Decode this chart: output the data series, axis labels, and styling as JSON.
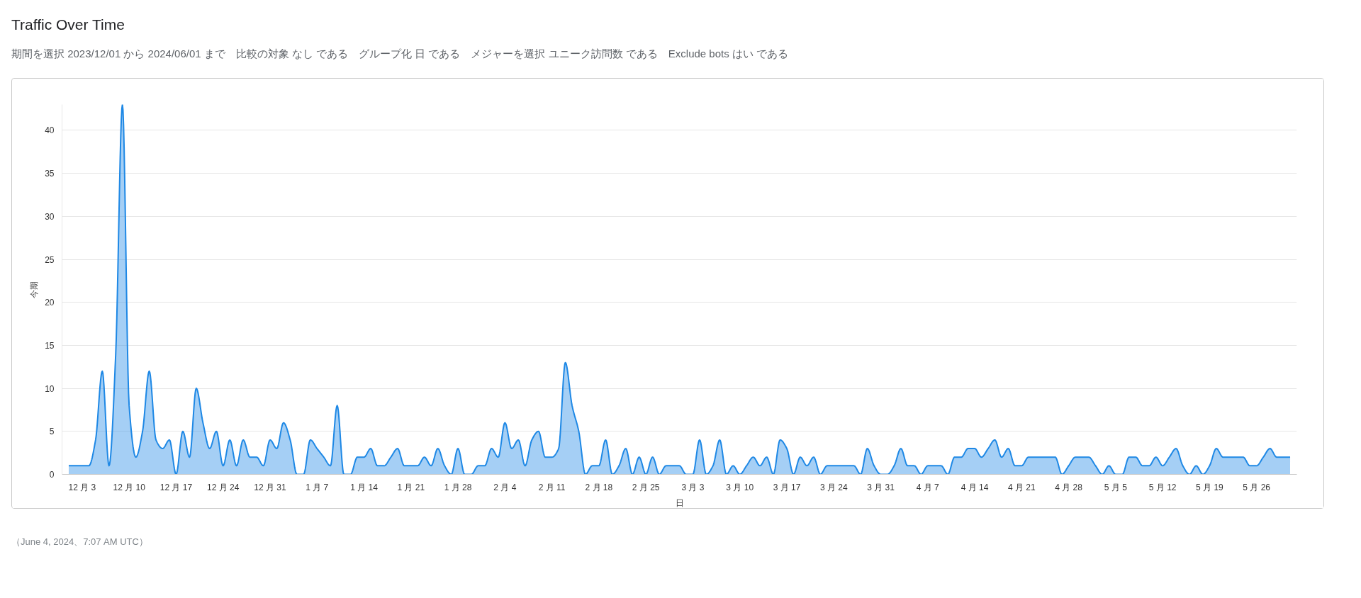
{
  "chart_data": {
    "type": "area",
    "title": "Traffic Over Time",
    "subtitle": "期間を選択 2023/12/01 から 2024/06/01 まで　比較の対象 なし である　グループ化 日 である　メジャーを選択 ユニーク訪問数 である　Exclude bots はい である",
    "xlabel": "日",
    "ylabel": "今期",
    "annotations": [
      "（June 4, 2024、7:07 AM UTC）"
    ],
    "x": [
      "2023-12-01",
      "2023-12-02",
      "2023-12-03",
      "2023-12-04",
      "2023-12-05",
      "2023-12-06",
      "2023-12-07",
      "2023-12-08",
      "2023-12-09",
      "2023-12-10",
      "2023-12-11",
      "2023-12-12",
      "2023-12-13",
      "2023-12-14",
      "2023-12-15",
      "2023-12-16",
      "2023-12-17",
      "2023-12-18",
      "2023-12-19",
      "2023-12-20",
      "2023-12-21",
      "2023-12-22",
      "2023-12-23",
      "2023-12-24",
      "2023-12-25",
      "2023-12-26",
      "2023-12-27",
      "2023-12-28",
      "2023-12-29",
      "2023-12-30",
      "2023-12-31",
      "2024-01-01",
      "2024-01-02",
      "2024-01-03",
      "2024-01-04",
      "2024-01-05",
      "2024-01-06",
      "2024-01-07",
      "2024-01-08",
      "2024-01-09",
      "2024-01-10",
      "2024-01-11",
      "2024-01-12",
      "2024-01-13",
      "2024-01-14",
      "2024-01-15",
      "2024-01-16",
      "2024-01-17",
      "2024-01-18",
      "2024-01-19",
      "2024-01-20",
      "2024-01-21",
      "2024-01-22",
      "2024-01-23",
      "2024-01-24",
      "2024-01-25",
      "2024-01-26",
      "2024-01-27",
      "2024-01-28",
      "2024-01-29",
      "2024-01-30",
      "2024-01-31",
      "2024-02-01",
      "2024-02-02",
      "2024-02-03",
      "2024-02-04",
      "2024-02-05",
      "2024-02-06",
      "2024-02-07",
      "2024-02-08",
      "2024-02-09",
      "2024-02-10",
      "2024-02-11",
      "2024-02-12",
      "2024-02-13",
      "2024-02-14",
      "2024-02-15",
      "2024-02-16",
      "2024-02-17",
      "2024-02-18",
      "2024-02-19",
      "2024-02-20",
      "2024-02-21",
      "2024-02-22",
      "2024-02-23",
      "2024-02-24",
      "2024-02-25",
      "2024-02-26",
      "2024-02-27",
      "2024-02-28",
      "2024-02-29",
      "2024-03-01",
      "2024-03-02",
      "2024-03-03",
      "2024-03-04",
      "2024-03-05",
      "2024-03-06",
      "2024-03-07",
      "2024-03-08",
      "2024-03-09",
      "2024-03-10",
      "2024-03-11",
      "2024-03-12",
      "2024-03-13",
      "2024-03-14",
      "2024-03-15",
      "2024-03-16",
      "2024-03-17",
      "2024-03-18",
      "2024-03-19",
      "2024-03-20",
      "2024-03-21",
      "2024-03-22",
      "2024-03-23",
      "2024-03-24",
      "2024-03-25",
      "2024-03-26",
      "2024-03-27",
      "2024-03-28",
      "2024-03-29",
      "2024-03-30",
      "2024-03-31",
      "2024-04-01",
      "2024-04-02",
      "2024-04-03",
      "2024-04-04",
      "2024-04-05",
      "2024-04-06",
      "2024-04-07",
      "2024-04-08",
      "2024-04-09",
      "2024-04-10",
      "2024-04-11",
      "2024-04-12",
      "2024-04-13",
      "2024-04-14",
      "2024-04-15",
      "2024-04-16",
      "2024-04-17",
      "2024-04-18",
      "2024-04-19",
      "2024-04-20",
      "2024-04-21",
      "2024-04-22",
      "2024-04-23",
      "2024-04-24",
      "2024-04-25",
      "2024-04-26",
      "2024-04-27",
      "2024-04-28",
      "2024-04-29",
      "2024-04-30",
      "2024-05-01",
      "2024-05-02",
      "2024-05-03",
      "2024-05-04",
      "2024-05-05",
      "2024-05-06",
      "2024-05-07",
      "2024-05-08",
      "2024-05-09",
      "2024-05-10",
      "2024-05-11",
      "2024-05-12",
      "2024-05-13",
      "2024-05-14",
      "2024-05-15",
      "2024-05-16",
      "2024-05-17",
      "2024-05-18",
      "2024-05-19",
      "2024-05-20",
      "2024-05-21",
      "2024-05-22",
      "2024-05-23",
      "2024-05-24",
      "2024-05-25",
      "2024-05-26",
      "2024-05-27",
      "2024-05-28",
      "2024-05-29",
      "2024-05-30",
      "2024-05-31"
    ],
    "series": [
      {
        "color": "#1e88e5",
        "values": [
          1,
          1,
          1,
          1,
          4,
          12,
          1,
          14,
          43,
          8,
          2,
          5,
          12,
          4,
          3,
          4,
          0,
          5,
          2,
          10,
          6,
          3,
          5,
          1,
          4,
          1,
          4,
          2,
          2,
          1,
          4,
          3,
          6,
          4,
          0,
          0,
          4,
          3,
          2,
          1,
          8,
          0,
          0,
          2,
          2,
          3,
          1,
          1,
          2,
          3,
          1,
          1,
          1,
          2,
          1,
          3,
          1,
          0,
          3,
          0,
          0,
          1,
          1,
          3,
          2,
          6,
          3,
          4,
          1,
          4,
          5,
          2,
          2,
          3,
          13,
          8,
          5,
          0,
          1,
          1,
          4,
          0,
          1,
          3,
          0,
          2,
          0,
          2,
          0,
          1,
          1,
          1,
          0,
          0,
          4,
          0,
          1,
          4,
          0,
          1,
          0,
          1,
          2,
          1,
          2,
          0,
          4,
          3,
          0,
          2,
          1,
          2,
          0,
          1,
          1,
          1,
          1,
          1,
          0,
          3,
          1,
          0,
          0,
          1,
          3,
          1,
          1,
          0,
          1,
          1,
          1,
          0,
          2,
          2,
          3,
          3,
          2,
          3,
          4,
          2,
          3,
          1,
          1,
          2,
          2,
          2,
          2,
          2,
          0,
          1,
          2,
          2,
          2,
          1,
          0,
          1,
          0,
          0,
          2,
          2,
          1,
          1,
          2,
          1,
          2,
          3,
          1,
          0,
          1,
          0,
          1,
          3,
          2,
          2,
          2,
          2,
          1,
          1,
          2,
          3,
          2,
          2,
          2
        ]
      }
    ],
    "xlim": [
      "2023-11-30",
      "2024-06-01"
    ],
    "xticks": [
      {
        "value": "2023-12-03",
        "label": "12 月 3"
      },
      {
        "value": "2023-12-10",
        "label": "12 月 10"
      },
      {
        "value": "2023-12-17",
        "label": "12 月 17"
      },
      {
        "value": "2023-12-24",
        "label": "12 月 24"
      },
      {
        "value": "2023-12-31",
        "label": "12 月 31"
      },
      {
        "value": "2024-01-07",
        "label": "1 月 7"
      },
      {
        "value": "2024-01-14",
        "label": "1 月 14"
      },
      {
        "value": "2024-01-21",
        "label": "1 月 21"
      },
      {
        "value": "2024-01-28",
        "label": "1 月 28"
      },
      {
        "value": "2024-02-04",
        "label": "2 月 4"
      },
      {
        "value": "2024-02-11",
        "label": "2 月 11"
      },
      {
        "value": "2024-02-18",
        "label": "2 月 18"
      },
      {
        "value": "2024-02-25",
        "label": "2 月 25"
      },
      {
        "value": "2024-03-03",
        "label": "3 月 3"
      },
      {
        "value": "2024-03-10",
        "label": "3 月 10"
      },
      {
        "value": "2024-03-17",
        "label": "3 月 17"
      },
      {
        "value": "2024-03-24",
        "label": "3 月 24"
      },
      {
        "value": "2024-03-31",
        "label": "3 月 31"
      },
      {
        "value": "2024-04-07",
        "label": "4 月 7"
      },
      {
        "value": "2024-04-14",
        "label": "4 月 14"
      },
      {
        "value": "2024-04-21",
        "label": "4 月 21"
      },
      {
        "value": "2024-04-28",
        "label": "4 月 28"
      },
      {
        "value": "2024-05-05",
        "label": "5 月 5"
      },
      {
        "value": "2024-05-12",
        "label": "5 月 12"
      },
      {
        "value": "2024-05-19",
        "label": "5 月 19"
      },
      {
        "value": "2024-05-26",
        "label": "5 月 26"
      }
    ],
    "ylim": [
      0,
      43
    ],
    "yticks": [
      0,
      5,
      10,
      15,
      20,
      25,
      30,
      35,
      40
    ],
    "grid": "y",
    "line_style": "solid",
    "marker": "none"
  }
}
